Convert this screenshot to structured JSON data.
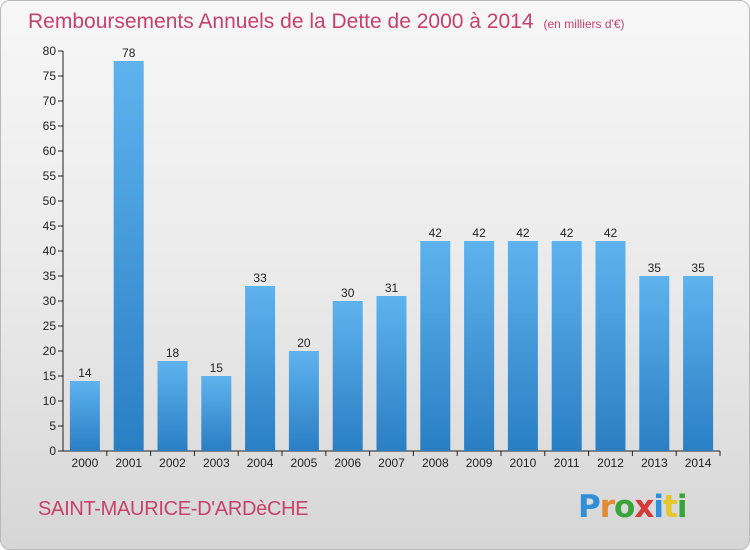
{
  "header": {
    "title": "Remboursements Annuels de la Dette de 2000 à 2014",
    "unit": "(en milliers d'€)"
  },
  "footer": {
    "commune": "SAINT-MAURICE-D'ARDèCHE",
    "brand": "Proxiti"
  },
  "colors": {
    "accent": "#c8416d",
    "bar_light": "#5eb3ee",
    "bar_dark": "#2a7ec3",
    "logo": [
      "#2f8fd8",
      "#e58a2e",
      "#3aa43a",
      "#d63a3a",
      "#2f8fd8",
      "#e5c62a",
      "#3aa43a"
    ]
  },
  "chart_data": {
    "type": "bar",
    "title": "Remboursements Annuels de la Dette de 2000 à 2014",
    "subtitle": "(en milliers d'€)",
    "xlabel": "",
    "ylabel": "",
    "categories": [
      "2000",
      "2001",
      "2002",
      "2003",
      "2004",
      "2005",
      "2006",
      "2007",
      "2008",
      "2009",
      "2010",
      "2011",
      "2012",
      "2013",
      "2014"
    ],
    "values": [
      14,
      78,
      18,
      15,
      33,
      20,
      30,
      31,
      42,
      42,
      42,
      42,
      42,
      35,
      35
    ],
    "data_labels": [
      "14",
      "78",
      "18",
      "15",
      "33",
      "20",
      "30",
      "31",
      "42",
      "42",
      "42",
      "42",
      "42",
      "35",
      "35"
    ],
    "ylim": [
      0,
      80
    ],
    "yticks": [
      0,
      5,
      10,
      15,
      20,
      25,
      30,
      35,
      40,
      45,
      50,
      55,
      60,
      65,
      70,
      75,
      80
    ],
    "grid": false,
    "legend": "none"
  }
}
